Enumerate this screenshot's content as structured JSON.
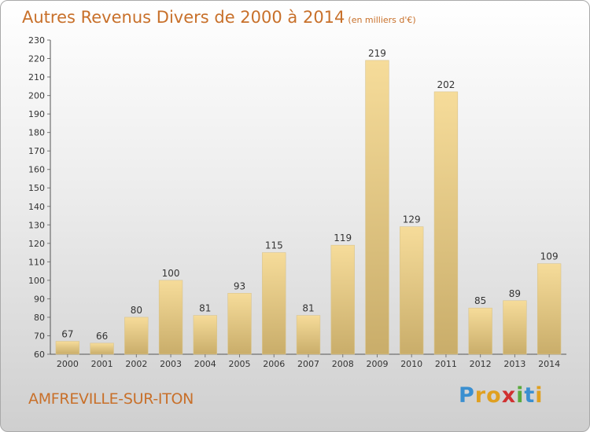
{
  "header": {
    "title": "Autres Revenus Divers de 2000 à 2014",
    "unit": "(en milliers d'€)"
  },
  "footer": {
    "place": "AMFREVILLE-SUR-ITON",
    "logo_letters": [
      {
        "ch": "P",
        "color": "#3a8fd0"
      },
      {
        "ch": "r",
        "color": "#e0a020"
      },
      {
        "ch": "o",
        "color": "#e0a020"
      },
      {
        "ch": "x",
        "color": "#d03030"
      },
      {
        "ch": "i",
        "color": "#5aaa3c"
      },
      {
        "ch": "t",
        "color": "#3a8fd0"
      },
      {
        "ch": "i",
        "color": "#e0a020"
      }
    ]
  },
  "chart_data": {
    "type": "bar",
    "title": "Autres Revenus Divers de 2000 à 2014",
    "unit": "(en milliers d'€)",
    "categories": [
      "2000",
      "2001",
      "2002",
      "2003",
      "2004",
      "2005",
      "2006",
      "2007",
      "2008",
      "2009",
      "2010",
      "2011",
      "2012",
      "2013",
      "2014"
    ],
    "values": [
      67,
      66,
      80,
      100,
      81,
      93,
      115,
      81,
      119,
      219,
      129,
      202,
      85,
      89,
      109
    ],
    "ylim": [
      60,
      230
    ],
    "ytick_step": 10,
    "grid": false,
    "colors": {
      "bar_light": "#f6dc9a",
      "bar_dark": "#c9ad6a"
    }
  }
}
